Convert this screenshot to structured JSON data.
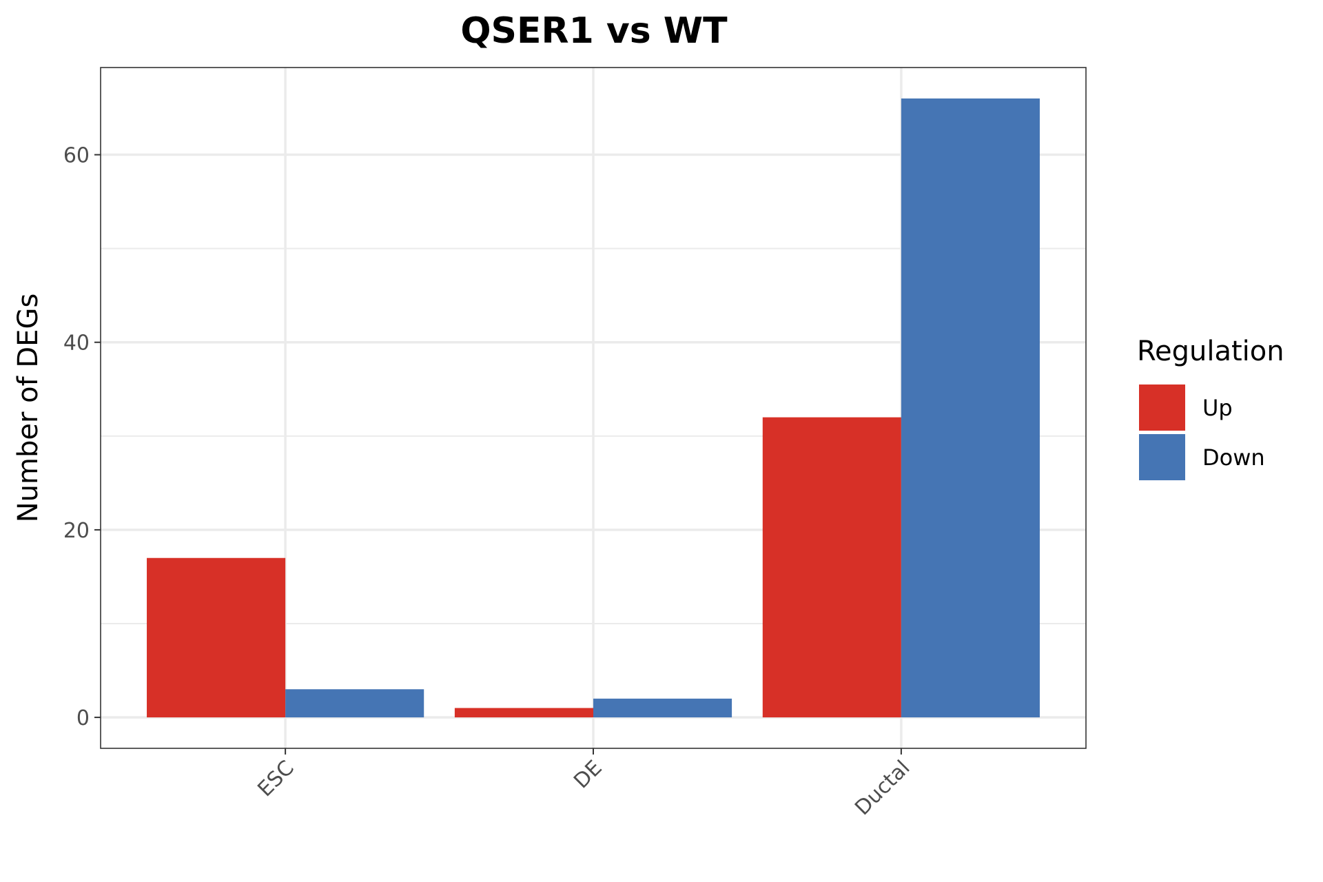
{
  "chart_data": {
    "type": "bar",
    "title": "QSER1 vs WT",
    "xlabel": "",
    "ylabel": "Number of DEGs",
    "categories": [
      "ESC",
      "DE",
      "Ductal"
    ],
    "series": [
      {
        "name": "Up",
        "values": [
          17,
          1,
          32
        ],
        "color": "#d73027"
      },
      {
        "name": "Down",
        "values": [
          3,
          2,
          66
        ],
        "color": "#4575b4"
      }
    ],
    "ylim": [
      -3.3,
      69.3
    ],
    "yticks": [
      0,
      20,
      40,
      60
    ],
    "grid": true,
    "legend": {
      "title": "Regulation",
      "position": "right"
    }
  }
}
